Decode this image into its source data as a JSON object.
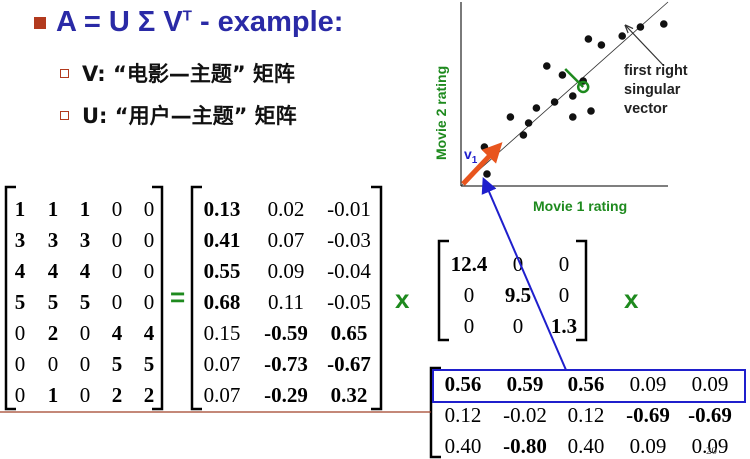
{
  "title": "A = U Σ V",
  "title_superscript": "T",
  "title_suffix": " - example:",
  "bullets": [
    "V: “电影—主题” 矩阵",
    "U: “用户—主题” 矩阵"
  ],
  "matrix_a": [
    [
      {
        "v": "1",
        "b": true
      },
      {
        "v": "1",
        "b": true
      },
      {
        "v": "1",
        "b": true
      },
      {
        "v": "0",
        "b": false
      },
      {
        "v": "0",
        "b": false
      }
    ],
    [
      {
        "v": "3",
        "b": true
      },
      {
        "v": "3",
        "b": true
      },
      {
        "v": "3",
        "b": true
      },
      {
        "v": "0",
        "b": false
      },
      {
        "v": "0",
        "b": false
      }
    ],
    [
      {
        "v": "4",
        "b": true
      },
      {
        "v": "4",
        "b": true
      },
      {
        "v": "4",
        "b": true
      },
      {
        "v": "0",
        "b": false
      },
      {
        "v": "0",
        "b": false
      }
    ],
    [
      {
        "v": "5",
        "b": true
      },
      {
        "v": "5",
        "b": true
      },
      {
        "v": "5",
        "b": true
      },
      {
        "v": "0",
        "b": false
      },
      {
        "v": "0",
        "b": false
      }
    ],
    [
      {
        "v": "0",
        "b": false
      },
      {
        "v": "2",
        "b": true
      },
      {
        "v": "0",
        "b": false
      },
      {
        "v": "4",
        "b": true
      },
      {
        "v": "4",
        "b": true
      }
    ],
    [
      {
        "v": "0",
        "b": false
      },
      {
        "v": "0",
        "b": false
      },
      {
        "v": "0",
        "b": false
      },
      {
        "v": "5",
        "b": true
      },
      {
        "v": "5",
        "b": true
      }
    ],
    [
      {
        "v": "0",
        "b": false
      },
      {
        "v": "1",
        "b": true
      },
      {
        "v": "0",
        "b": false
      },
      {
        "v": "2",
        "b": true
      },
      {
        "v": "2",
        "b": true
      }
    ]
  ],
  "equals": "=",
  "matrix_u": [
    [
      {
        "v": "0.13",
        "b": true
      },
      {
        "v": "0.02",
        "b": false
      },
      {
        "v": "-0.01",
        "b": false
      }
    ],
    [
      {
        "v": "0.41",
        "b": true
      },
      {
        "v": "0.07",
        "b": false
      },
      {
        "v": "-0.03",
        "b": false
      }
    ],
    [
      {
        "v": "0.55",
        "b": true
      },
      {
        "v": "0.09",
        "b": false
      },
      {
        "v": "-0.04",
        "b": false
      }
    ],
    [
      {
        "v": "0.68",
        "b": true
      },
      {
        "v": "0.11",
        "b": false
      },
      {
        "v": "-0.05",
        "b": false
      }
    ],
    [
      {
        "v": "0.15",
        "b": false
      },
      {
        "v": "-0.59",
        "b": true
      },
      {
        "v": "0.65",
        "b": true
      }
    ],
    [
      {
        "v": "0.07",
        "b": false
      },
      {
        "v": "-0.73",
        "b": true
      },
      {
        "v": "-0.67",
        "b": true
      }
    ],
    [
      {
        "v": "0.07",
        "b": false
      },
      {
        "v": "-0.29",
        "b": true
      },
      {
        "v": "0.32",
        "b": true
      }
    ]
  ],
  "times": "x",
  "matrix_sigma": [
    [
      {
        "v": "12.4",
        "b": true
      },
      {
        "v": "0",
        "b": false
      },
      {
        "v": "0",
        "b": false
      }
    ],
    [
      {
        "v": "0",
        "b": false
      },
      {
        "v": "9.5",
        "b": true
      },
      {
        "v": "0",
        "b": false
      }
    ],
    [
      {
        "v": "0",
        "b": false
      },
      {
        "v": "0",
        "b": false
      },
      {
        "v": "1.3",
        "b": true
      }
    ]
  ],
  "matrix_vt": [
    [
      {
        "v": "0.56",
        "b": true
      },
      {
        "v": "0.59",
        "b": true
      },
      {
        "v": "0.56",
        "b": true
      },
      {
        "v": "0.09",
        "b": false
      },
      {
        "v": "0.09",
        "b": false
      }
    ],
    [
      {
        "v": "0.12",
        "b": false
      },
      {
        "v": "-0.02",
        "b": false
      },
      {
        "v": "0.12",
        "b": false
      },
      {
        "v": "-0.69",
        "b": true
      },
      {
        "v": "-0.69",
        "b": true
      }
    ],
    [
      {
        "v": "0.40",
        "b": false
      },
      {
        "v": "-0.80",
        "b": true
      },
      {
        "v": "0.40",
        "b": false
      },
      {
        "v": "0.09",
        "b": false
      },
      {
        "v": "0.09",
        "b": false
      }
    ]
  ],
  "page_number": "20",
  "scatter": {
    "xlabel": "Movie 1 rating",
    "ylabel": "Movie 2 rating",
    "vector_label": "v",
    "vector_subscript": "1",
    "annotation": [
      "first right",
      "singular",
      "vector"
    ],
    "points": [
      [
        1.0,
        0.4
      ],
      [
        0.9,
        1.3
      ],
      [
        1.9,
        2.3
      ],
      [
        2.4,
        1.7
      ],
      [
        2.6,
        2.1
      ],
      [
        2.9,
        2.6
      ],
      [
        3.3,
        4.0
      ],
      [
        3.9,
        3.7
      ],
      [
        3.6,
        2.8
      ],
      [
        4.3,
        2.3
      ],
      [
        4.3,
        3.0
      ],
      [
        4.7,
        3.5
      ],
      [
        5.0,
        2.5
      ],
      [
        4.9,
        4.9
      ],
      [
        5.4,
        4.7
      ],
      [
        6.2,
        5.0
      ],
      [
        6.9,
        5.3
      ],
      [
        7.8,
        5.4
      ]
    ],
    "mean": [
      4.7,
      3.3
    ],
    "colors": {
      "axis": "#333333",
      "points": "#111111",
      "mean": "#1e8a1e",
      "vector": "#e8551e",
      "link": "#1f1fcc",
      "highlight": "#1f1fcc"
    }
  }
}
